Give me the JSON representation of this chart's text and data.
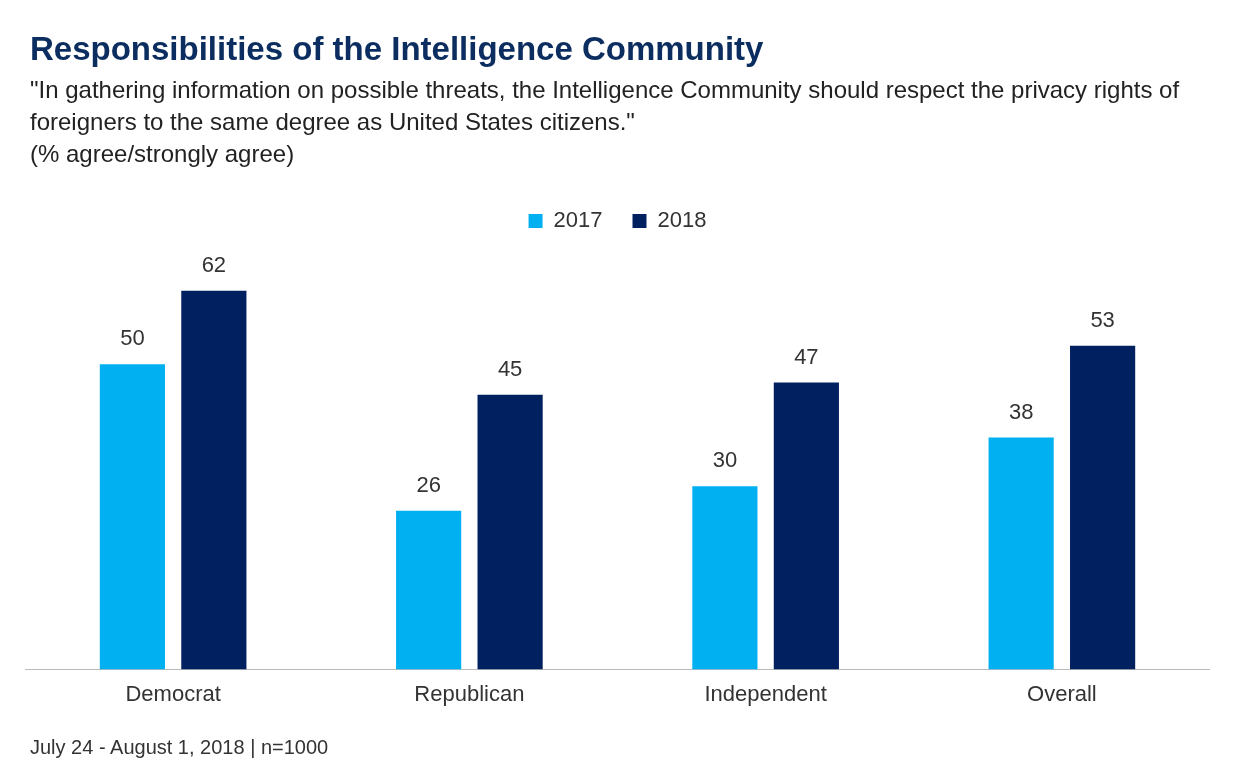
{
  "chart_data": {
    "type": "bar",
    "title": "Responsibilities of the Intelligence Community",
    "subtitle": "\"In gathering information on possible threats, the Intelligence Community should respect the privacy rights of foreigners to the same degree as United States citizens.\"\n(% agree/strongly agree)",
    "categories": [
      "Democrat",
      "Republican",
      "Independent",
      "Overall"
    ],
    "series": [
      {
        "name": "2017",
        "color": "#00b0f0",
        "values": [
          50,
          26,
          30,
          38
        ]
      },
      {
        "name": "2018",
        "color": "#002060",
        "values": [
          62,
          45,
          47,
          53
        ]
      }
    ],
    "data_labels": true,
    "grid": false,
    "legend": "top",
    "annotations": [
      "July 24 - August 1, 2018 | n=1000"
    ]
  }
}
